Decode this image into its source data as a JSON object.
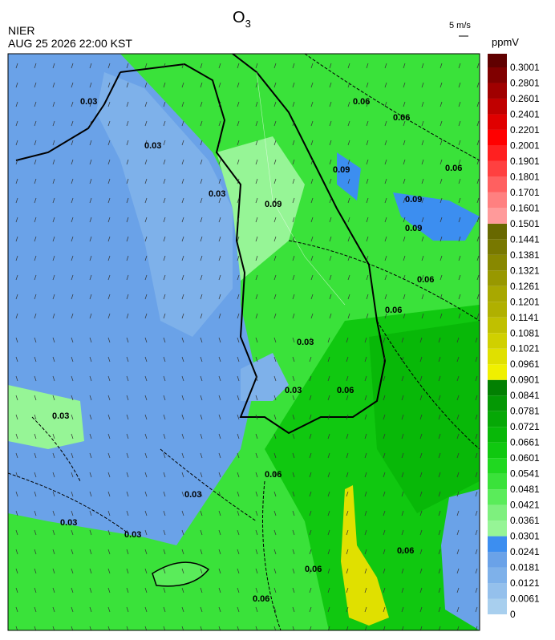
{
  "title": "O",
  "title_subscript": "3",
  "source": "NIER",
  "datetime": "AUG 25 2026 22:00 KST",
  "wind_scale_label": "5 m/s",
  "colorbar": {
    "unit": "ppmV",
    "ticks": [
      0,
      0.0061,
      0.0121,
      0.0181,
      0.0241,
      0.0301,
      0.0361,
      0.0421,
      0.0481,
      0.0541,
      0.0601,
      0.0661,
      0.0721,
      0.0781,
      0.0841,
      0.0901,
      0.0961,
      0.1021,
      0.1081,
      0.1141,
      0.1201,
      0.1261,
      0.1321,
      0.1381,
      0.1441,
      0.1501,
      0.1601,
      0.1701,
      0.1801,
      0.1901,
      0.2001,
      0.2201,
      0.2401,
      0.2601,
      0.2801,
      0.3001
    ],
    "colors": [
      "#a8cfee",
      "#94c0ec",
      "#7eb1ea",
      "#6aa2e8",
      "#3c8ef0",
      "#96f596",
      "#7ef07e",
      "#5aec5a",
      "#3ae23a",
      "#20d820",
      "#10c810",
      "#08b808",
      "#06a806",
      "#049804",
      "#028002",
      "#f0f000",
      "#e0e000",
      "#d0d000",
      "#c0c000",
      "#b0b000",
      "#a8a800",
      "#989800",
      "#888800",
      "#787800",
      "#686800",
      "#ff9a9a",
      "#ff8080",
      "#ff6060",
      "#ff4040",
      "#ff2020",
      "#ff0000",
      "#e00000",
      "#c00000",
      "#a00000",
      "#800000",
      "#600000"
    ]
  },
  "contour_labels": [
    "0.03",
    "0.03",
    "0.03",
    "0.03",
    "0.03",
    "0.03",
    "0.03",
    "0.03",
    "0.03",
    "0.06",
    "0.06",
    "0.06",
    "0.06",
    "0.06",
    "0.06",
    "0.06",
    "0.06",
    "0.06",
    "0.06",
    "0.09",
    "0.09",
    "0.09",
    "0.09"
  ]
}
